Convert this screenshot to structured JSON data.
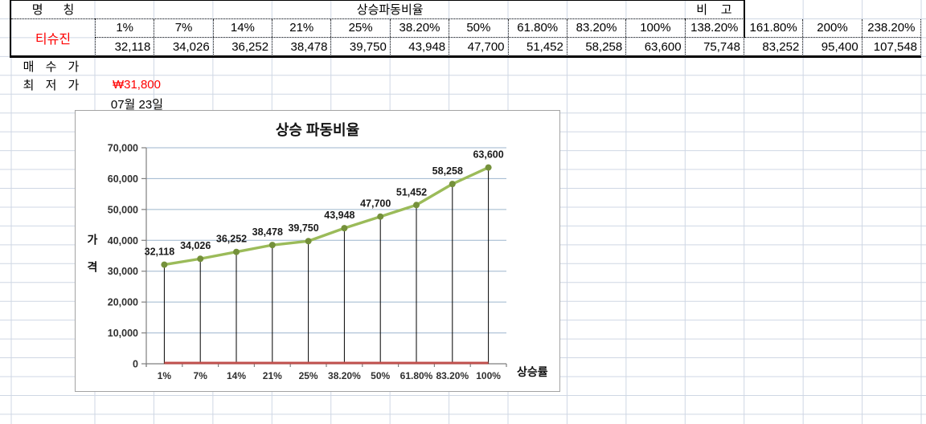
{
  "sheet": {
    "name_header": "명      칭",
    "ratio_header": "상승파동비율",
    "remark_header": "비    고",
    "stock_name": "티슈진",
    "buy_price_label": "매 수 가",
    "low_price_label": "최 저 가",
    "low_price_value": "₩31,800",
    "date_value": "07월 23일",
    "percents": [
      "1%",
      "7%",
      "14%",
      "21%",
      "25%",
      "38.20%",
      "50%",
      "61.80%",
      "83.20%",
      "100%",
      "138.20%",
      "161.80%",
      "200%",
      "238.20%"
    ],
    "values": [
      "32,118",
      "34,026",
      "36,252",
      "38,478",
      "39,750",
      "43,948",
      "47,700",
      "51,452",
      "58,258",
      "63,600",
      "75,748",
      "83,252",
      "95,400",
      "107,548"
    ]
  },
  "chart_data": {
    "type": "line",
    "title": "상승 파동비율",
    "xlabel": "상승률",
    "ylabel": "가격",
    "categories": [
      "1%",
      "7%",
      "14%",
      "21%",
      "25%",
      "38.20%",
      "50%",
      "61.80%",
      "83.20%",
      "100%"
    ],
    "series": [
      {
        "name": "price",
        "color": "#9bbb59",
        "marker_color": "#75913b",
        "values": [
          32118,
          34026,
          36252,
          38478,
          39750,
          43948,
          47700,
          51452,
          58258,
          63600
        ],
        "data_labels": true
      },
      {
        "name": "baseline",
        "color": "#c0504d",
        "values": [
          0,
          0,
          0,
          0,
          0,
          0,
          0,
          0,
          0,
          0
        ],
        "data_labels": false
      }
    ],
    "ylim": [
      0,
      70000
    ],
    "ytick_step": 10000,
    "grid": true,
    "drop_lines": true,
    "legend": "none"
  },
  "colors": {
    "grid": "#cfd7e4",
    "chart_grid": "#9eb6ce",
    "axis": "#7f7f7f",
    "drop_line": "#000000",
    "accent_red": "#ff0000",
    "text": "#000000",
    "chart_text": "#303030"
  }
}
